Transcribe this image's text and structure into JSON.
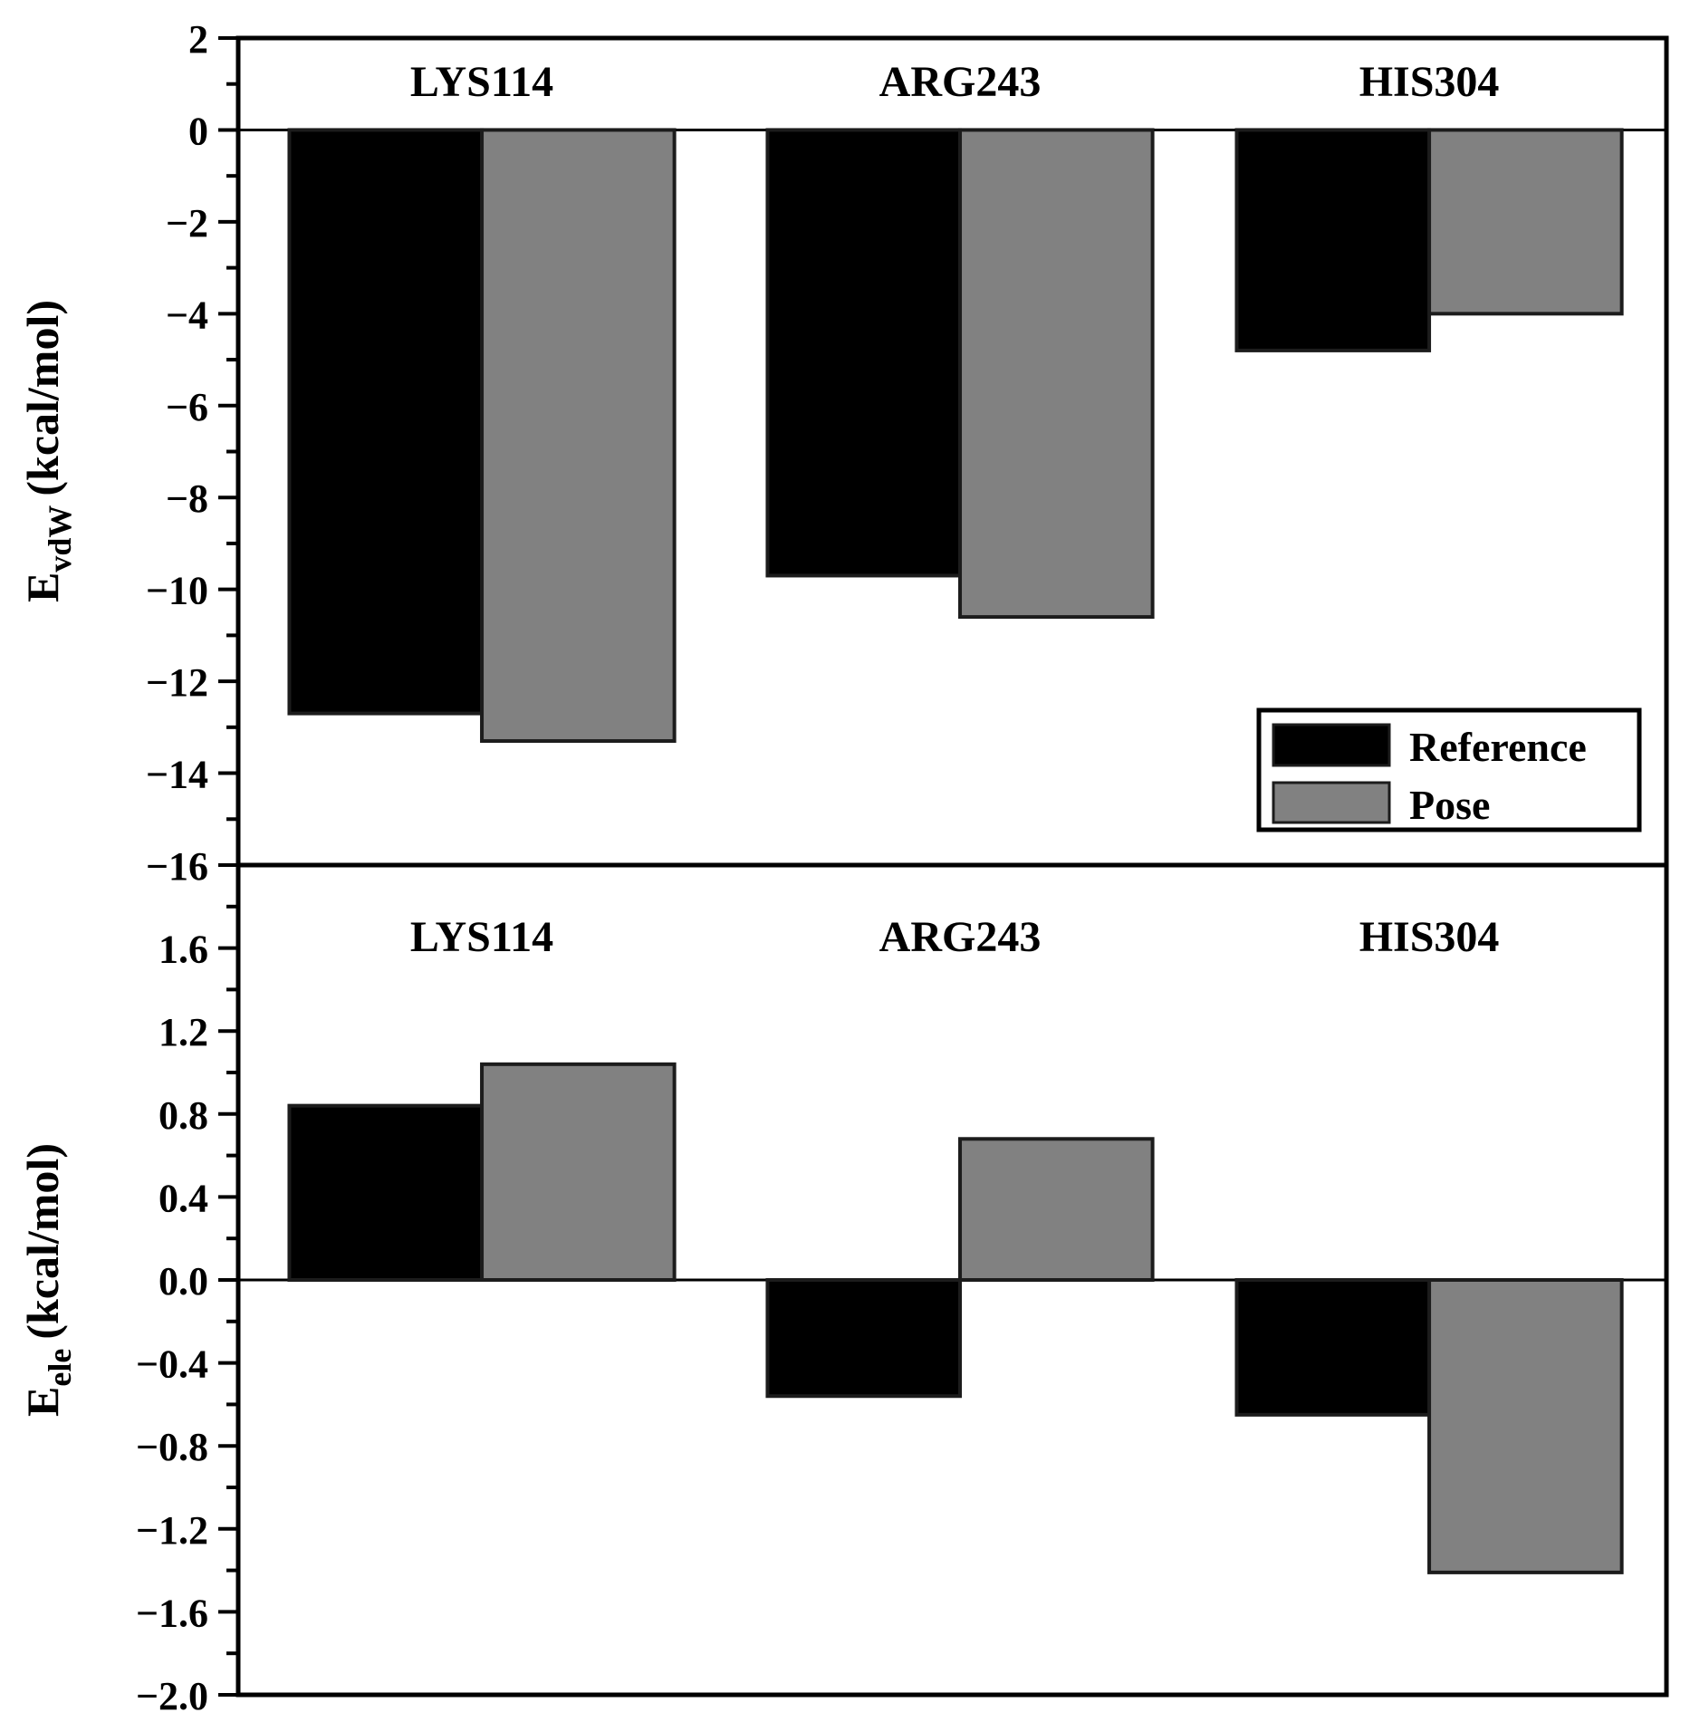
{
  "figure": {
    "background": "#ffffff",
    "border_color": "#000000",
    "series_colors": {
      "reference": "#000000",
      "pose": "#818181"
    },
    "bar_edge_color": "#1c1c1c"
  },
  "legend": {
    "position": "inside top panel, bottom right",
    "items": [
      {
        "label": "Reference",
        "color": "#000000"
      },
      {
        "label": "Pose",
        "color": "#818181"
      }
    ]
  },
  "chart_data": [
    {
      "type": "bar",
      "panel": "top",
      "ylabel": "E_vdW (kcal/mol)",
      "ylabel_main": "E",
      "ylabel_sub": "vdW",
      "ylabel_rest": "(kcal/mol)",
      "categories": [
        "LYS114",
        "ARG243",
        "HIS304"
      ],
      "series": [
        {
          "name": "Reference",
          "values": [
            -12.7,
            -9.7,
            -4.8
          ]
        },
        {
          "name": "Pose",
          "values": [
            -13.3,
            -10.6,
            -4.0
          ]
        }
      ],
      "ylim": [
        -16,
        2
      ],
      "grid": false,
      "yticks": [
        2,
        0,
        -2,
        -4,
        -6,
        -8,
        -10,
        -12,
        -14,
        -16
      ],
      "ytick_labels": [
        "2",
        "0",
        "−2",
        "−4",
        "−6",
        "−8",
        "−10",
        "−12",
        "−14",
        "−16"
      ],
      "yticks_minor": [
        1,
        -1,
        -3,
        -5,
        -7,
        -9,
        -11,
        -13,
        -15
      ]
    },
    {
      "type": "bar",
      "panel": "bottom",
      "ylabel": "E_ele (kcal/mol)",
      "ylabel_main": "E",
      "ylabel_sub": "ele",
      "ylabel_rest": "(kcal/mol)",
      "categories": [
        "LYS114",
        "ARG243",
        "HIS304"
      ],
      "series": [
        {
          "name": "Reference",
          "values": [
            0.84,
            -0.56,
            -0.65
          ]
        },
        {
          "name": "Pose",
          "values": [
            1.04,
            0.68,
            -1.41
          ]
        }
      ],
      "ylim": [
        -2.0,
        2.0
      ],
      "grid": false,
      "yticks": [
        1.6,
        1.2,
        0.8,
        0.4,
        0.0,
        -0.4,
        -0.8,
        -1.2,
        -1.6,
        -2.0
      ],
      "ytick_labels": [
        "1.6",
        "1.2",
        "0.8",
        "0.4",
        "0.0",
        "−0.4",
        "−0.8",
        "−1.2",
        "−1.6",
        "−2.0"
      ],
      "yticks_minor": [
        1.8,
        1.4,
        1.0,
        0.6,
        0.2,
        -0.2,
        -0.6,
        -1.0,
        -1.4,
        -1.8
      ]
    }
  ]
}
